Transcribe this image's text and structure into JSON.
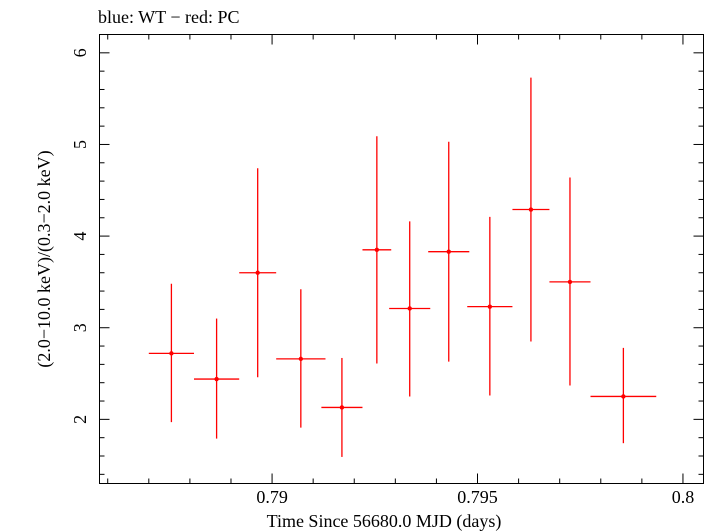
{
  "chart_data": {
    "type": "scatter",
    "title": "blue: WT − red: PC",
    "xlabel": "Time Since 56680.0 MJD (days)",
    "ylabel": "(2.0−10.0 keV)/(0.3−2.0 keV)",
    "xlim": [
      0.7858,
      0.8005
    ],
    "ylim": [
      1.3,
      6.2
    ],
    "x_ticks": [
      {
        "value": 0.79,
        "label": "0.79"
      },
      {
        "value": 0.795,
        "label": "0.795"
      },
      {
        "value": 0.8,
        "label": "0.8"
      }
    ],
    "y_ticks": [
      {
        "value": 2,
        "label": "2"
      },
      {
        "value": 3,
        "label": "3"
      },
      {
        "value": 4,
        "label": "4"
      },
      {
        "value": 5,
        "label": "5"
      },
      {
        "value": 6,
        "label": "6"
      }
    ],
    "series": [
      {
        "color": "#ff0000",
        "points": [
          {
            "x": 0.78755,
            "xerr": 0.00055,
            "y": 2.72,
            "ylo": 1.97,
            "yhi": 3.48
          },
          {
            "x": 0.78865,
            "xerr": 0.00055,
            "y": 2.44,
            "ylo": 1.79,
            "yhi": 3.1
          },
          {
            "x": 0.78965,
            "xerr": 0.00045,
            "y": 3.6,
            "ylo": 2.46,
            "yhi": 4.74
          },
          {
            "x": 0.7907,
            "xerr": 0.0006,
            "y": 2.66,
            "ylo": 1.91,
            "yhi": 3.42
          },
          {
            "x": 0.7917,
            "xerr": 0.0005,
            "y": 2.13,
            "ylo": 1.59,
            "yhi": 2.67
          },
          {
            "x": 0.79255,
            "xerr": 0.00035,
            "y": 3.85,
            "ylo": 2.61,
            "yhi": 5.09
          },
          {
            "x": 0.79335,
            "xerr": 0.0005,
            "y": 3.21,
            "ylo": 2.25,
            "yhi": 4.16
          },
          {
            "x": 0.7943,
            "xerr": 0.0005,
            "y": 3.83,
            "ylo": 2.63,
            "yhi": 5.03
          },
          {
            "x": 0.7953,
            "xerr": 0.00055,
            "y": 3.23,
            "ylo": 2.26,
            "yhi": 4.21
          },
          {
            "x": 0.7963,
            "xerr": 0.00045,
            "y": 4.29,
            "ylo": 2.85,
            "yhi": 5.73
          },
          {
            "x": 0.79725,
            "xerr": 0.0005,
            "y": 3.5,
            "ylo": 2.37,
            "yhi": 4.64
          },
          {
            "x": 0.79855,
            "xerr": 0.0008,
            "y": 2.25,
            "ylo": 1.74,
            "yhi": 2.78
          }
        ]
      }
    ]
  }
}
